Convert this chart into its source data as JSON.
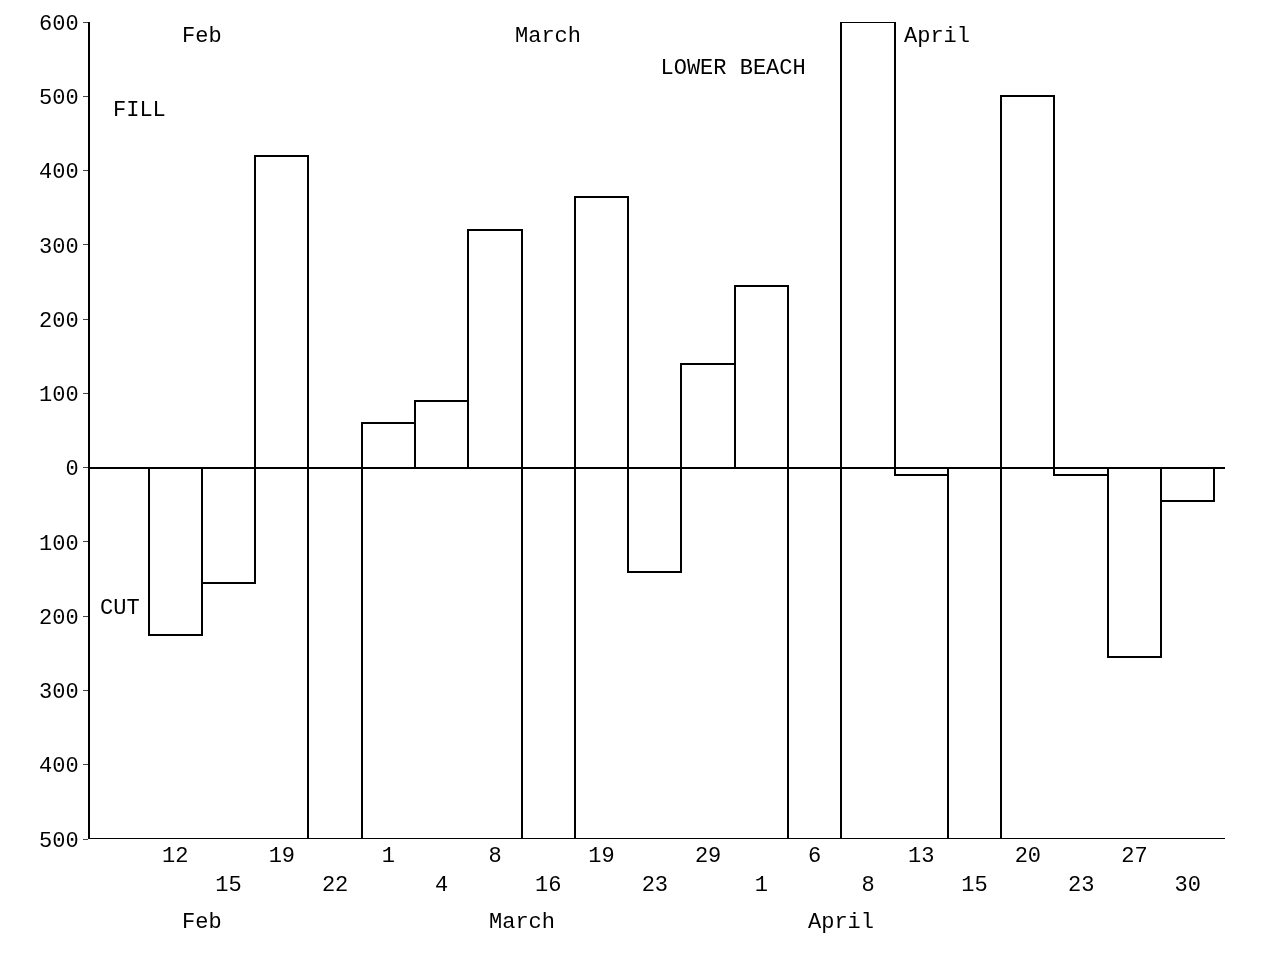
{
  "chart_data": {
    "type": "bar",
    "title": "LOWER BEACH",
    "categories": [
      "12",
      "15",
      "19",
      "22",
      "1",
      "4",
      "8",
      "16",
      "19",
      "23",
      "29",
      "1",
      "6",
      "8",
      "13",
      "15",
      "20",
      "23",
      "27",
      "30"
    ],
    "values": [
      -225,
      -155,
      420,
      -500,
      60,
      90,
      320,
      -500,
      365,
      -140,
      140,
      245,
      -500,
      600,
      -10,
      -500,
      500,
      -10,
      -255,
      -45
    ],
    "color": "#ffffff",
    "ylim": [
      -500,
      600
    ],
    "yticks": [
      {
        "value": -500,
        "label": "500"
      },
      {
        "value": -400,
        "label": "400"
      },
      {
        "value": -300,
        "label": "300"
      },
      {
        "value": -200,
        "label": "200"
      },
      {
        "value": -100,
        "label": "100"
      },
      0,
      100,
      200,
      300,
      400,
      500,
      600
    ],
    "annotations": [
      "FILL",
      "CUT",
      "Feb",
      "March",
      "April",
      "Feb",
      "March",
      "April"
    ]
  }
}
